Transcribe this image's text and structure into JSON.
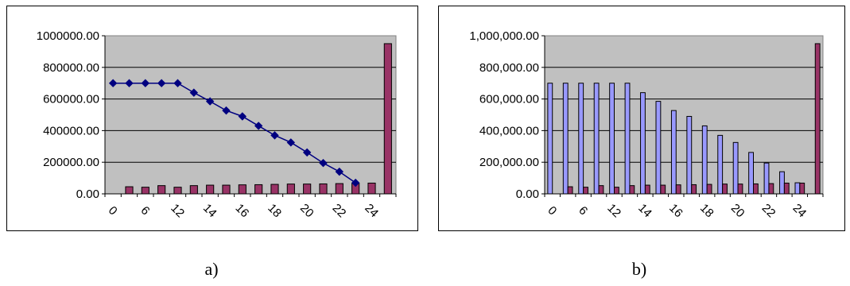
{
  "chart_data": [
    {
      "type": "bar",
      "panel_label": "a)",
      "x_tick_labels": [
        "0",
        "6",
        "12",
        "14",
        "16",
        "18",
        "20",
        "22",
        "24"
      ],
      "y_tick_labels": [
        "0.00",
        "200000.00",
        "400000.00",
        "600000.00",
        "800000.00",
        "1000000.00"
      ],
      "ylim": [
        0,
        1000000
      ],
      "grid": true,
      "legend": "none",
      "colors": {
        "plot_bg": "#c0c0c0",
        "line": "#000080",
        "bar": "#993366"
      },
      "line_series": {
        "style": "line-with-diamond-markers",
        "values": [
          700000,
          700000,
          700000,
          700000,
          700000,
          640000,
          585000,
          527000,
          490000,
          430000,
          370000,
          325000,
          262000,
          195000,
          140000,
          70000
        ]
      },
      "bar_series": {
        "values": [
          null,
          45000,
          42000,
          52000,
          42000,
          52000,
          55000,
          55000,
          57000,
          58000,
          60000,
          62000,
          62000,
          63000,
          65000,
          68000,
          68000,
          950000
        ]
      }
    },
    {
      "type": "bar",
      "panel_label": "b)",
      "x_tick_labels": [
        "0",
        "6",
        "12",
        "14",
        "16",
        "18",
        "20",
        "22",
        "24"
      ],
      "y_tick_labels": [
        "0.00",
        "200,000.00",
        "400,000.00",
        "600,000.00",
        "800,000.00",
        "1,000,000.00"
      ],
      "ylim": [
        0,
        1000000
      ],
      "grid": true,
      "legend": "none",
      "colors": {
        "plot_bg": "#c0c0c0",
        "bar_a": "#9999ff",
        "bar_b": "#993366"
      },
      "series": [
        {
          "values": [
            700000,
            700000,
            700000,
            700000,
            700000,
            700000,
            640000,
            585000,
            527000,
            490000,
            430000,
            370000,
            325000,
            262000,
            195000,
            140000,
            70000,
            0
          ]
        },
        {
          "values": [
            0,
            45000,
            42000,
            52000,
            42000,
            52000,
            55000,
            55000,
            57000,
            58000,
            60000,
            62000,
            62000,
            63000,
            65000,
            68000,
            68000,
            950000
          ]
        }
      ]
    }
  ]
}
